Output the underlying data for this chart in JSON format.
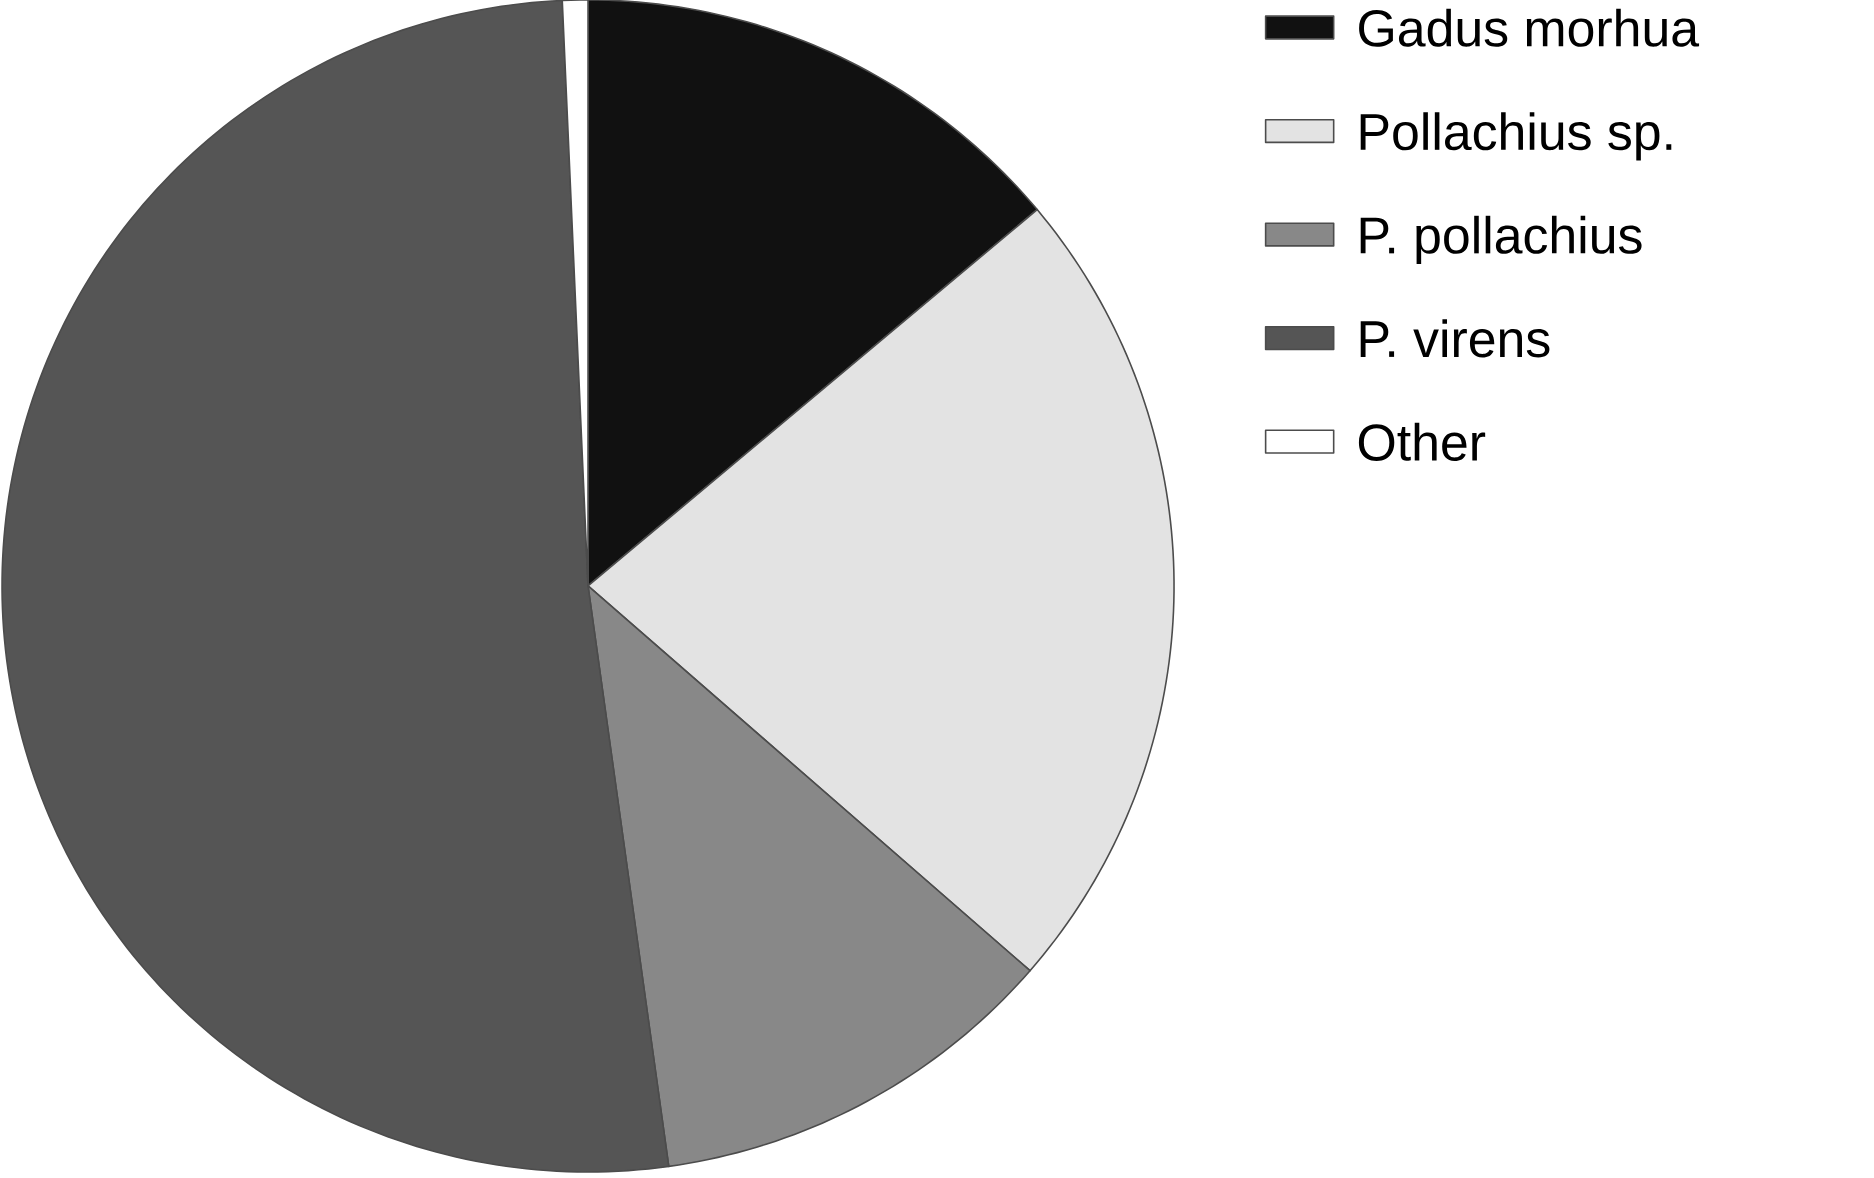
{
  "chart_data": {
    "type": "pie",
    "categories": [
      "Gadus morhua",
      "Pollachius sp.",
      "P. pollachius",
      "P. virens",
      "Other"
    ],
    "values": [
      13.9,
      22.5,
      11.4,
      51.5,
      0.7
    ],
    "colors": [
      "#111111",
      "#e3e3e3",
      "#888888",
      "#555555",
      "#ffffff"
    ],
    "legend": "right"
  }
}
